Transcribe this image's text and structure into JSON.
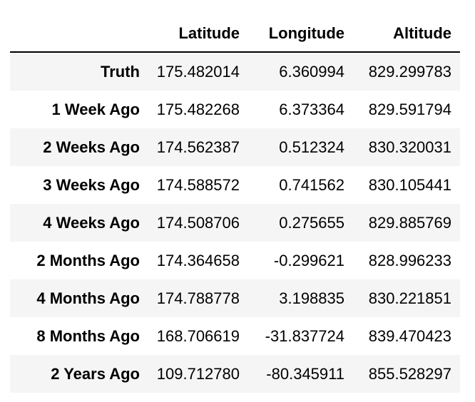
{
  "table": {
    "columns": [
      "Latitude",
      "Longitude",
      "Altitude"
    ],
    "rows": [
      {
        "label": "Truth",
        "latitude": "175.482014",
        "longitude": "6.360994",
        "altitude": "829.299783"
      },
      {
        "label": "1 Week Ago",
        "latitude": "175.482268",
        "longitude": "6.373364",
        "altitude": "829.591794"
      },
      {
        "label": "2 Weeks Ago",
        "latitude": "174.562387",
        "longitude": "0.512324",
        "altitude": "830.320031"
      },
      {
        "label": "3 Weeks Ago",
        "latitude": "174.588572",
        "longitude": "0.741562",
        "altitude": "830.105441"
      },
      {
        "label": "4 Weeks Ago",
        "latitude": "174.508706",
        "longitude": "0.275655",
        "altitude": "829.885769"
      },
      {
        "label": "2 Months Ago",
        "latitude": "174.364658",
        "longitude": "-0.299621",
        "altitude": "828.996233"
      },
      {
        "label": "4 Months Ago",
        "latitude": "174.788778",
        "longitude": "3.198835",
        "altitude": "830.221851"
      },
      {
        "label": "8 Months Ago",
        "latitude": "168.706619",
        "longitude": "-31.837724",
        "altitude": "839.470423"
      },
      {
        "label": "2 Years Ago",
        "latitude": "109.712780",
        "longitude": "-80.345911",
        "altitude": "855.528297"
      }
    ]
  }
}
